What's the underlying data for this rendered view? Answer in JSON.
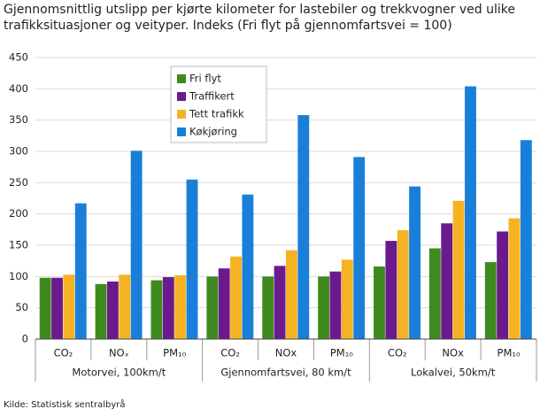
{
  "chart_data": {
    "type": "bar",
    "title": "Gjennomsnittlig utslipp per kjørte kilometer for lastebiler og trekkvogner ved ulike trafikksituasjoner og veityper. Indeks (Fri flyt på gjennomfartsvei = 100)",
    "source": "Kilde: Statistisk sentralbyrå",
    "categories": [
      "CO₂",
      "NOₓ",
      "PM₁₀",
      "CO₂",
      "NOx",
      "PM₁₀",
      "CO₂",
      "NOx",
      "PM₁₀"
    ],
    "group_labels": [
      "Motorvei, 100km/t",
      "Gjennomfartsvei, 80 km/t",
      "Lokalvei, 50km/t"
    ],
    "series": [
      {
        "name": "Fri flyt",
        "color": "#3f8a1e",
        "values": [
          98,
          88,
          94,
          100,
          100,
          100,
          116,
          145,
          123
        ]
      },
      {
        "name": "Traffikert",
        "color": "#6b1a8e",
        "values": [
          98,
          92,
          99,
          113,
          117,
          108,
          157,
          185,
          172
        ]
      },
      {
        "name": "Tett trafikk",
        "color": "#f5b324",
        "values": [
          103,
          103,
          102,
          132,
          142,
          127,
          174,
          221,
          193
        ]
      },
      {
        "name": "Køkjøring",
        "color": "#1a7fd8",
        "values": [
          217,
          301,
          255,
          231,
          358,
          291,
          244,
          404,
          318
        ]
      }
    ],
    "ylim": [
      0,
      450
    ],
    "yticks": [
      0,
      50,
      100,
      150,
      200,
      250,
      300,
      350,
      400,
      450
    ],
    "grid": true
  }
}
